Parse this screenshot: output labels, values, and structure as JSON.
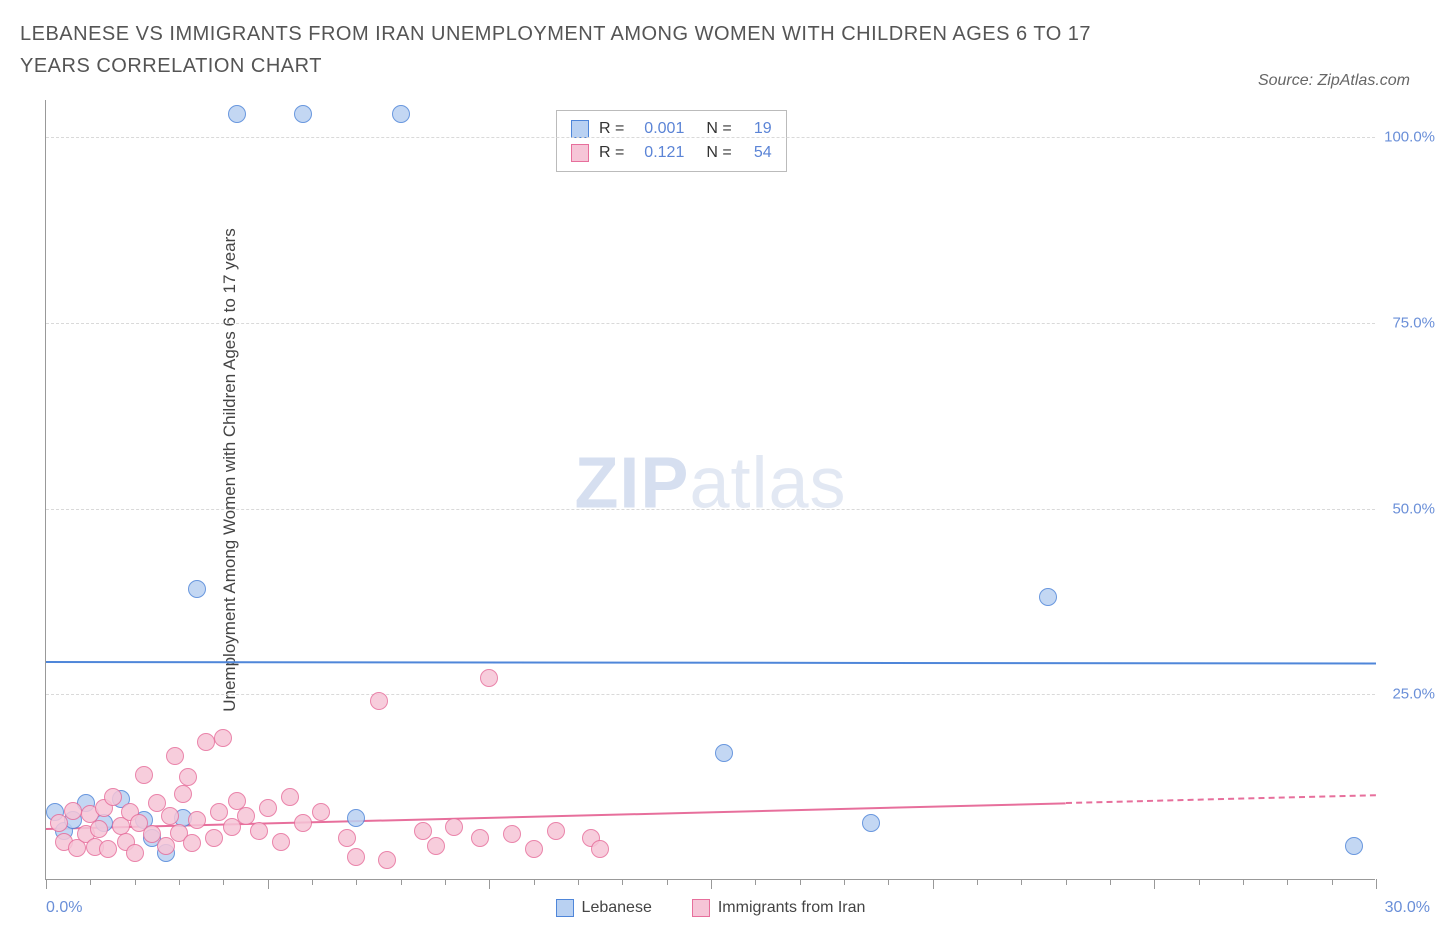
{
  "title": "LEBANESE VS IMMIGRANTS FROM IRAN UNEMPLOYMENT AMONG WOMEN WITH CHILDREN AGES 6 TO 17 YEARS CORRELATION CHART",
  "source_label": "Source: ZipAtlas.com",
  "yaxis_label": "Unemployment Among Women with Children Ages 6 to 17 years",
  "watermark": {
    "bold": "ZIP",
    "rest": "atlas"
  },
  "chart": {
    "type": "scatter",
    "xlim": [
      0,
      30
    ],
    "ylim": [
      0,
      105
    ],
    "x_tick_major_step": 5,
    "x_tick_minor_step": 1,
    "y_ticks": [
      25,
      50,
      75,
      100
    ],
    "y_tick_labels": [
      "25.0%",
      "50.0%",
      "75.0%",
      "100.0%"
    ],
    "x_min_label": "0.0%",
    "x_max_label": "30.0%",
    "background_color": "#ffffff",
    "grid_color": "#d9d9d9",
    "marker_radius": 9,
    "marker_border_width": 1.5,
    "marker_fill_opacity": 0.35
  },
  "series": [
    {
      "key": "lebanese",
      "label": "Lebanese",
      "color_border": "#4f86d9",
      "color_fill": "#b9d1f2",
      "R": "0.001",
      "N": "19",
      "trend": {
        "y_at_xmin": 29.5,
        "y_at_xmax": 29.3,
        "solid_until_x": 30
      },
      "points": [
        {
          "x": 0.2,
          "y": 9.0
        },
        {
          "x": 0.4,
          "y": 6.5
        },
        {
          "x": 0.6,
          "y": 8.0
        },
        {
          "x": 0.9,
          "y": 10.2
        },
        {
          "x": 1.3,
          "y": 7.5
        },
        {
          "x": 1.7,
          "y": 10.8
        },
        {
          "x": 2.2,
          "y": 8.0
        },
        {
          "x": 2.4,
          "y": 5.5
        },
        {
          "x": 2.7,
          "y": 3.5
        },
        {
          "x": 3.1,
          "y": 8.2
        },
        {
          "x": 3.4,
          "y": 39.0
        },
        {
          "x": 4.3,
          "y": 103.0
        },
        {
          "x": 5.8,
          "y": 103.0
        },
        {
          "x": 7.0,
          "y": 8.2
        },
        {
          "x": 8.0,
          "y": 103.0
        },
        {
          "x": 15.3,
          "y": 17.0
        },
        {
          "x": 18.6,
          "y": 7.5
        },
        {
          "x": 22.6,
          "y": 38.0
        },
        {
          "x": 29.5,
          "y": 4.5
        }
      ]
    },
    {
      "key": "iran",
      "label": "Immigrants from Iran",
      "color_border": "#e76f9c",
      "color_fill": "#f6c5d7",
      "R": "0.121",
      "N": "54",
      "trend": {
        "y_at_xmin": 7.0,
        "y_at_xmax": 11.5,
        "solid_until_x": 23
      },
      "points": [
        {
          "x": 0.3,
          "y": 7.5
        },
        {
          "x": 0.4,
          "y": 5.0
        },
        {
          "x": 0.6,
          "y": 9.2
        },
        {
          "x": 0.7,
          "y": 4.2
        },
        {
          "x": 0.9,
          "y": 6.0
        },
        {
          "x": 1.0,
          "y": 8.8
        },
        {
          "x": 1.1,
          "y": 4.3
        },
        {
          "x": 1.2,
          "y": 6.8
        },
        {
          "x": 1.3,
          "y": 9.5
        },
        {
          "x": 1.4,
          "y": 4.0
        },
        {
          "x": 1.5,
          "y": 11.0
        },
        {
          "x": 1.7,
          "y": 7.2
        },
        {
          "x": 1.8,
          "y": 5.0
        },
        {
          "x": 1.9,
          "y": 9.0
        },
        {
          "x": 2.0,
          "y": 3.5
        },
        {
          "x": 2.1,
          "y": 7.5
        },
        {
          "x": 2.2,
          "y": 14.0
        },
        {
          "x": 2.4,
          "y": 6.0
        },
        {
          "x": 2.5,
          "y": 10.2
        },
        {
          "x": 2.7,
          "y": 4.5
        },
        {
          "x": 2.8,
          "y": 8.5
        },
        {
          "x": 2.9,
          "y": 16.5
        },
        {
          "x": 3.0,
          "y": 6.2
        },
        {
          "x": 3.1,
          "y": 11.5
        },
        {
          "x": 3.2,
          "y": 13.8
        },
        {
          "x": 3.3,
          "y": 4.8
        },
        {
          "x": 3.4,
          "y": 8.0
        },
        {
          "x": 3.6,
          "y": 18.5
        },
        {
          "x": 3.8,
          "y": 5.5
        },
        {
          "x": 3.9,
          "y": 9.0
        },
        {
          "x": 4.0,
          "y": 19.0
        },
        {
          "x": 4.2,
          "y": 7.0
        },
        {
          "x": 4.3,
          "y": 10.5
        },
        {
          "x": 4.5,
          "y": 8.5
        },
        {
          "x": 4.8,
          "y": 6.5
        },
        {
          "x": 5.0,
          "y": 9.5
        },
        {
          "x": 5.3,
          "y": 5.0
        },
        {
          "x": 5.5,
          "y": 11.0
        },
        {
          "x": 5.8,
          "y": 7.5
        },
        {
          "x": 6.2,
          "y": 9.0
        },
        {
          "x": 6.8,
          "y": 5.5
        },
        {
          "x": 7.0,
          "y": 3.0
        },
        {
          "x": 7.5,
          "y": 24.0
        },
        {
          "x": 7.7,
          "y": 2.5
        },
        {
          "x": 8.5,
          "y": 6.5
        },
        {
          "x": 8.8,
          "y": 4.5
        },
        {
          "x": 9.2,
          "y": 7.0
        },
        {
          "x": 9.8,
          "y": 5.5
        },
        {
          "x": 10.0,
          "y": 27.0
        },
        {
          "x": 10.5,
          "y": 6.0
        },
        {
          "x": 11.0,
          "y": 4.0
        },
        {
          "x": 11.5,
          "y": 6.5
        },
        {
          "x": 12.3,
          "y": 5.5
        },
        {
          "x": 12.5,
          "y": 4.0
        }
      ]
    }
  ],
  "legend_top": {
    "r_label": "R =",
    "n_label": "N ="
  },
  "legend_bottom_labels": [
    "Lebanese",
    "Immigrants from Iran"
  ]
}
